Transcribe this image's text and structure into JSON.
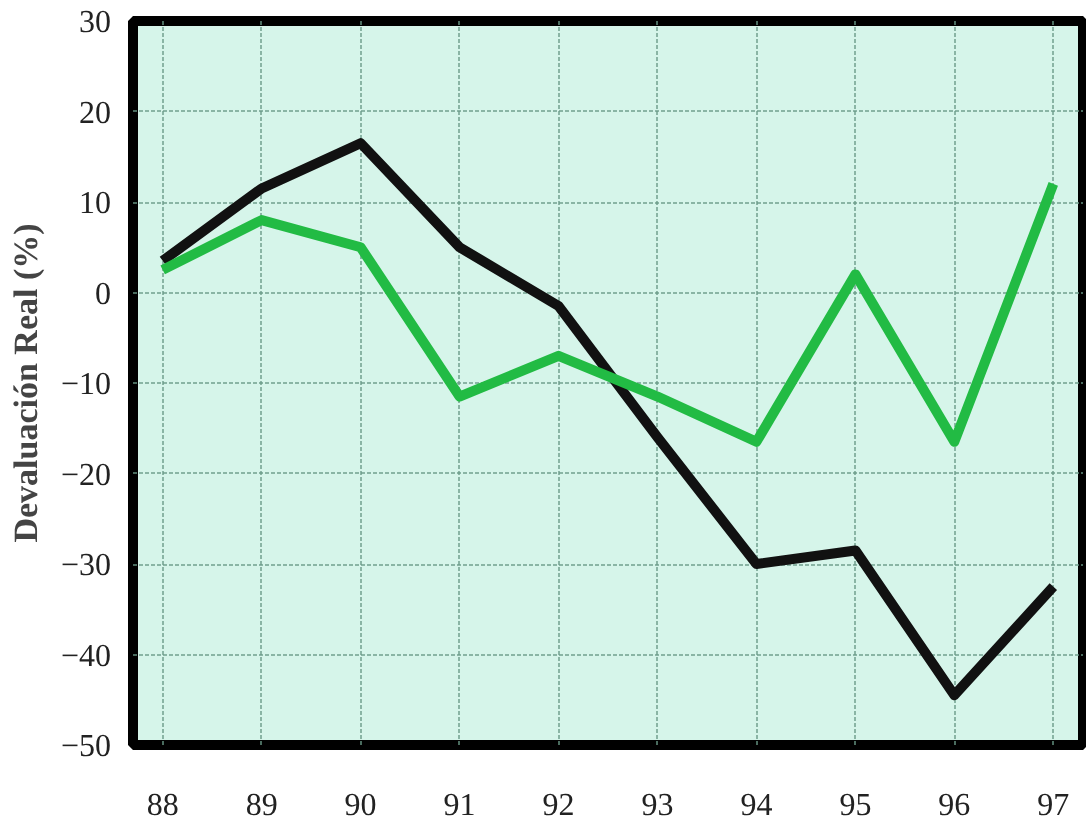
{
  "chart_data": {
    "type": "line",
    "ylabel": "Devaluación Real (%)",
    "categories": [
      "88",
      "89",
      "90",
      "91",
      "92",
      "93",
      "94",
      "95",
      "96",
      "97"
    ],
    "series": [
      {
        "color": "#111111",
        "values": [
          3.5,
          11.5,
          16.5,
          5,
          -1.5,
          -16,
          -30,
          -28.5,
          -44.5,
          -32.5
        ]
      },
      {
        "color": "#22bb44",
        "values": [
          2.5,
          8,
          5,
          -11.5,
          -7,
          -11.5,
          -16.5,
          2,
          -16.5,
          12
        ]
      }
    ],
    "ylim": [
      -50,
      30
    ],
    "yticks": [
      -50,
      -40,
      -30,
      -20,
      -10,
      0,
      10,
      20,
      30
    ],
    "grid": true,
    "marker": "none",
    "line_style": "solid"
  }
}
